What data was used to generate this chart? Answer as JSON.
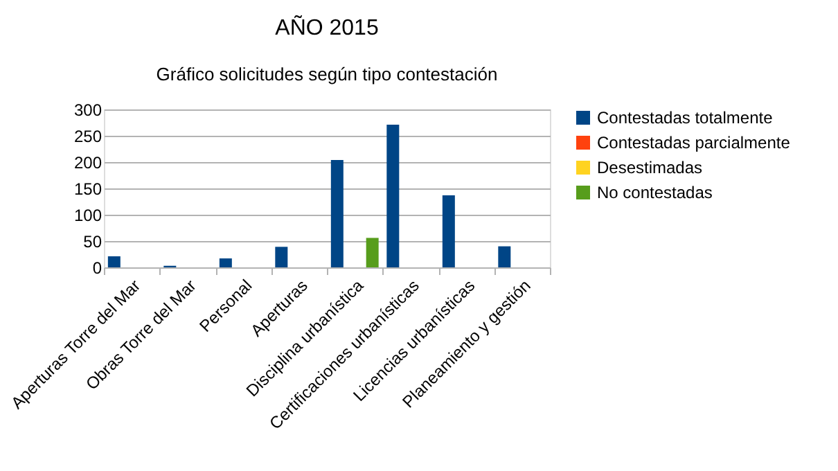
{
  "chart_data": {
    "type": "bar",
    "title": "AÑO 2015",
    "subtitle": "Gráfico solicitudes según tipo contestación",
    "categories": [
      "Aperturas Torre del Mar",
      "Obras Torre del Mar",
      "Personal",
      "Aperturas",
      "Disciplina urbanística",
      "Certificaciones urbanísticas",
      "Licencias urbanísticas",
      "Planeamiento y gestión"
    ],
    "series": [
      {
        "name": "Contestadas totalmente",
        "color": "#004586",
        "values": [
          21,
          3,
          17,
          39,
          204,
          271,
          137,
          40
        ]
      },
      {
        "name": "Contestadas parcialmente",
        "color": "#ff420e",
        "values": [
          0,
          0,
          0,
          0,
          0,
          0,
          0,
          0
        ]
      },
      {
        "name": "Desestimadas",
        "color": "#ffd320",
        "values": [
          0,
          0,
          0,
          0,
          0,
          0,
          0,
          0
        ]
      },
      {
        "name": "No contestadas",
        "color": "#579d1c",
        "values": [
          0,
          0,
          0,
          0,
          56,
          0,
          0,
          0
        ]
      }
    ],
    "ylim": [
      0,
      300
    ],
    "yticks": [
      0,
      50,
      100,
      150,
      200,
      250,
      300
    ],
    "grid": "y",
    "legend": "right"
  }
}
